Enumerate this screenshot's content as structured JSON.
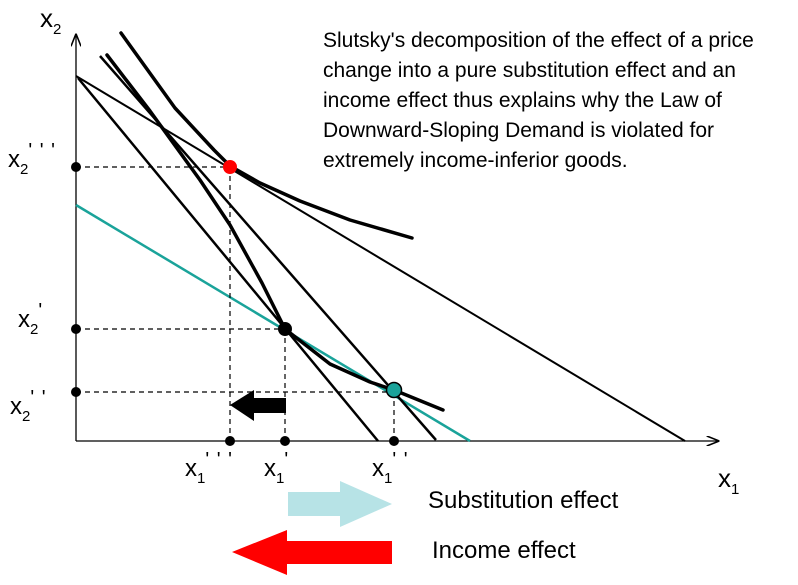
{
  "caption": "Slutsky's decomposition of the effect of a price change into a pure substitution effect and an income effect thus explains why the Law of Downward-Sloping Demand is violated for extremely income-inferior goods.",
  "axes": {
    "y_label": {
      "base": "x",
      "sub": "2"
    },
    "x_label": {
      "base": "x",
      "sub": "1"
    }
  },
  "y_ticks": [
    {
      "base": "x",
      "sub": "2",
      "primes": "' ' '"
    },
    {
      "base": "x",
      "sub": "2",
      "primes": "'"
    },
    {
      "base": "x",
      "sub": "2",
      "primes": "' '"
    }
  ],
  "x_ticks": [
    {
      "base": "x",
      "sub": "1",
      "primes": "' ' '"
    },
    {
      "base": "x",
      "sub": "1",
      "primes": "'"
    },
    {
      "base": "x",
      "sub": "1",
      "primes": "' '"
    }
  ],
  "legend": {
    "substitution": "Substitution effect",
    "income": "Income effect"
  },
  "colors": {
    "line": "#000000",
    "teal": "#1aa39a",
    "red_point": "#ff0000",
    "teal_point": "#1aa39a",
    "substitution_arrow": "#b7e3e6",
    "income_arrow": "#ff0000",
    "shift_arrow": "#000000"
  }
}
